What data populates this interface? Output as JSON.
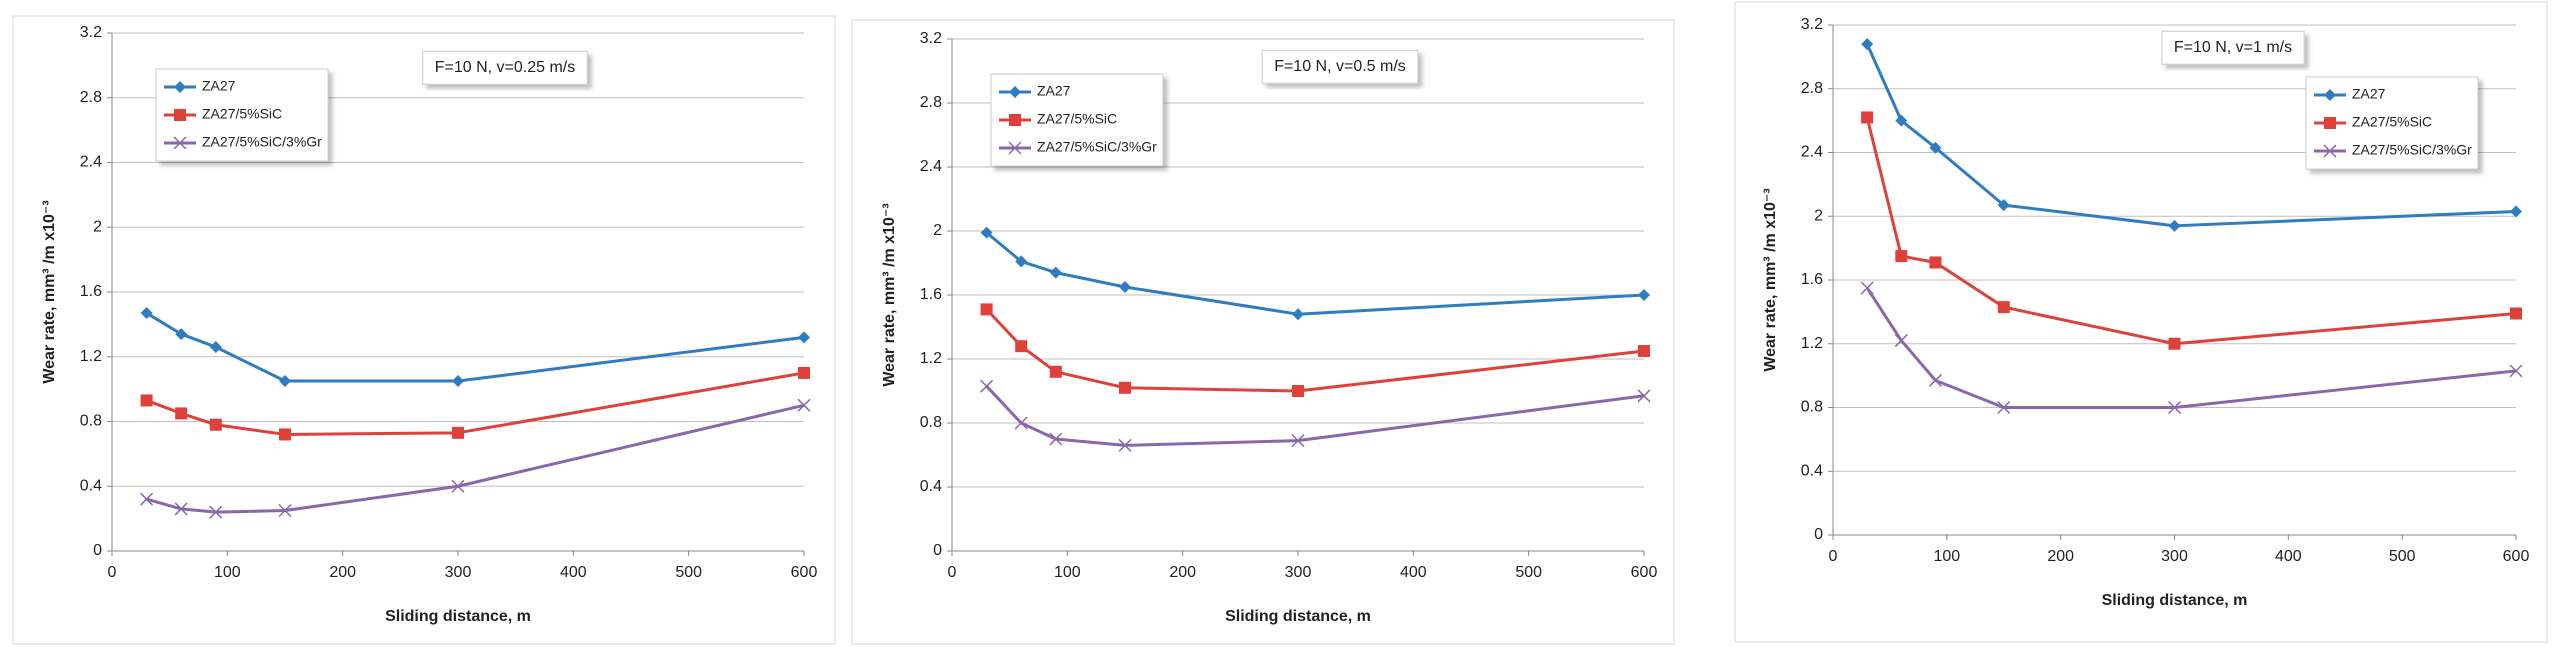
{
  "chart_data": [
    {
      "type": "line",
      "annotation": "F=10 N,  v=0.25 m/s",
      "x_label": "Sliding distance,  m",
      "y_label": "Wear rate,  mm³ /m  x10⁻³",
      "x": [
        30,
        60,
        90,
        150,
        300,
        600
      ],
      "series": [
        {
          "name": "ZA27",
          "color": "#2f7dc0",
          "marker": "diamond",
          "values": [
            1.47,
            1.34,
            1.26,
            1.05,
            1.05,
            1.32
          ]
        },
        {
          "name": "ZA27/5%SiC",
          "color": "#e0403a",
          "marker": "square",
          "values": [
            0.93,
            0.85,
            0.78,
            0.72,
            0.73,
            1.1
          ]
        },
        {
          "name": "ZA27/5%SiC/3%Gr",
          "color": "#8a67ad",
          "marker": "cross",
          "values": [
            0.32,
            0.26,
            0.24,
            0.25,
            0.4,
            0.9
          ]
        }
      ],
      "xlim": [
        0,
        600
      ],
      "xticks": [
        0,
        100,
        200,
        300,
        400,
        500,
        600
      ],
      "ylim": [
        0,
        3.2
      ],
      "yticks": [
        0,
        0.4,
        0.8,
        1.2,
        1.6,
        2,
        2.4,
        2.8,
        3.2
      ],
      "grid": true
    },
    {
      "type": "line",
      "annotation": "F=10 N,  v=0.5 m/s",
      "x_label": "Sliding distance,  m",
      "y_label": "Wear rate,  mm³ /m  x10⁻³",
      "x": [
        30,
        60,
        90,
        150,
        300,
        600
      ],
      "series": [
        {
          "name": "ZA27",
          "color": "#2f7dc0",
          "marker": "diamond",
          "values": [
            1.99,
            1.81,
            1.74,
            1.65,
            1.48,
            1.6
          ]
        },
        {
          "name": "ZA27/5%SiC",
          "color": "#e0403a",
          "marker": "square",
          "values": [
            1.51,
            1.28,
            1.12,
            1.02,
            1.0,
            1.25
          ]
        },
        {
          "name": "ZA27/5%SiC/3%Gr",
          "color": "#8a67ad",
          "marker": "cross",
          "values": [
            1.03,
            0.8,
            0.7,
            0.66,
            0.69,
            0.97
          ]
        }
      ],
      "xlim": [
        0,
        600
      ],
      "xticks": [
        0,
        100,
        200,
        300,
        400,
        500,
        600
      ],
      "ylim": [
        0,
        3.2
      ],
      "yticks": [
        0,
        0.4,
        0.8,
        1.2,
        1.6,
        2,
        2.4,
        2.8,
        3.2
      ],
      "grid": true
    },
    {
      "type": "line",
      "annotation": "F=10 N,  v=1 m/s",
      "x_label": "Sliding distance,  m",
      "y_label": "Wear rate,  mm³ /m  x10⁻³",
      "x": [
        30,
        60,
        90,
        150,
        300,
        600
      ],
      "series": [
        {
          "name": "ZA27",
          "color": "#2f7dc0",
          "marker": "diamond",
          "values": [
            3.08,
            2.6,
            2.43,
            2.07,
            1.94,
            2.03
          ]
        },
        {
          "name": "ZA27/5%SiC",
          "color": "#e0403a",
          "marker": "square",
          "values": [
            2.62,
            1.75,
            1.71,
            1.43,
            1.2,
            1.39
          ]
        },
        {
          "name": "ZA27/5%SiC/3%Gr",
          "color": "#8a67ad",
          "marker": "cross",
          "values": [
            1.55,
            1.22,
            0.97,
            0.8,
            0.8,
            1.03
          ]
        }
      ],
      "xlim": [
        0,
        600
      ],
      "xticks": [
        0,
        100,
        200,
        300,
        400,
        500,
        600
      ],
      "ylim": [
        0,
        3.2
      ],
      "yticks": [
        0,
        0.4,
        0.8,
        1.2,
        1.6,
        2,
        2.4,
        2.8,
        3.2
      ],
      "grid": true
    }
  ]
}
